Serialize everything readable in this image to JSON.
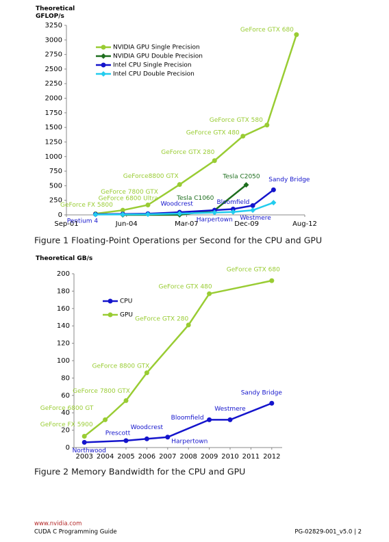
{
  "chart_data": [
    {
      "type": "line",
      "y_label": "Theoretical GFLOP/s",
      "caption": "Figure 1  Floating-Point Operations per Second for the CPU and GPU",
      "xlim": [
        2001.67,
        2012.58
      ],
      "xticks": [
        {
          "value": 2001.67,
          "label": "Sep-01"
        },
        {
          "value": 2004.42,
          "label": "Jun-04"
        },
        {
          "value": 2007.17,
          "label": "Mar-07"
        },
        {
          "value": 2009.92,
          "label": "Dec-09"
        },
        {
          "value": 2012.58,
          "label": "Aug-12"
        }
      ],
      "ylim": [
        0,
        3250
      ],
      "yticks": [
        0,
        250,
        500,
        750,
        1000,
        1250,
        1500,
        1750,
        2000,
        2250,
        2500,
        2750,
        3000,
        3250
      ],
      "grid": false,
      "legend": "upper left",
      "series": [
        {
          "name": "NVIDIA GPU Single Precision",
          "color": "#99cc33",
          "marker": "circle",
          "x": [
            2003.0,
            2004.25,
            2005.4,
            2006.85,
            2008.45,
            2009.75,
            2010.85,
            2012.2
          ],
          "values": [
            20,
            80,
            170,
            520,
            930,
            1350,
            1540,
            3090
          ],
          "point_labels": [
            "GeForce FX 5800",
            "GeForce 6800 Ultra",
            "GeForce 7800 GTX",
            "GeForce8800 GTX",
            "GeForce GTX 280",
            "GeForce GTX 480",
            "GeForce GTX 580",
            "GeForce GTX 680"
          ]
        },
        {
          "name": "NVIDIA GPU Double Precision",
          "color": "#1e6e1e",
          "marker": "diamond",
          "x": [
            2004.25,
            2006.85,
            2008.45,
            2009.9
          ],
          "values": [
            0,
            0,
            78,
            515
          ],
          "point_labels": [
            null,
            null,
            "Tesla C1060",
            "Tesla C2050"
          ]
        },
        {
          "name": "Intel CPU Single Precision",
          "color": "#1414cc",
          "marker": "circle",
          "x": [
            2003.0,
            2004.25,
            2005.4,
            2006.85,
            2008.45,
            2009.3,
            2010.2,
            2011.15
          ],
          "values": [
            12,
            15,
            20,
            45,
            80,
            100,
            160,
            430
          ],
          "point_labels": [
            "Pentium 4",
            null,
            null,
            "Woodcrest",
            "Harpertown",
            "Bloomfield",
            "Westmere",
            "Sandy Bridge"
          ]
        },
        {
          "name": "Intel CPU Double Precision",
          "color": "#22ccee",
          "marker": "diamond",
          "x": [
            2003.0,
            2004.25,
            2005.4,
            2006.85,
            2008.45,
            2009.3,
            2010.2,
            2011.15
          ],
          "values": [
            6,
            8,
            10,
            22,
            40,
            50,
            80,
            210
          ]
        }
      ]
    },
    {
      "type": "line",
      "y_label": "Theoretical GB/s",
      "caption": "Figure 2  Memory Bandwidth for the CPU and GPU",
      "xlim": [
        2002.5,
        2012.5
      ],
      "xticks": [
        2003,
        2004,
        2005,
        2006,
        2007,
        2008,
        2009,
        2010,
        2011,
        2012
      ],
      "ylim": [
        0,
        200
      ],
      "yticks": [
        0,
        20,
        40,
        60,
        80,
        100,
        120,
        140,
        160,
        180,
        200
      ],
      "grid": false,
      "legend": "upper left",
      "series": [
        {
          "name": "CPU",
          "color": "#1414cc",
          "marker": "circle",
          "x": [
            2003,
            2005,
            2006,
            2007,
            2009,
            2010,
            2012
          ],
          "values": [
            6,
            8,
            10,
            12,
            32,
            32,
            51
          ],
          "point_labels": [
            "Northwood",
            "Prescott",
            "Woodcrest",
            "Harpertown",
            "Bloomfield",
            "Westmere",
            "Sandy Bridge"
          ]
        },
        {
          "name": "GPU",
          "color": "#99cc33",
          "marker": "circle",
          "x": [
            2003,
            2004,
            2005,
            2006,
            2008,
            2009,
            2012
          ],
          "values": [
            13,
            32,
            54,
            86,
            141,
            177,
            192
          ],
          "point_labels": [
            "GeForce FX 5900",
            "GeForce 6800 GT",
            "GeForce 7800 GTX",
            "GeForce 8800 GTX",
            "GeForce GTX 280",
            "GeForce GTX 480",
            "GeForce GTX 680"
          ]
        }
      ]
    }
  ],
  "footer": {
    "url": "www.nvidia.com",
    "guide": "CUDA C Programming Guide",
    "page": "PG-02829-001_v5.0 | 2"
  }
}
